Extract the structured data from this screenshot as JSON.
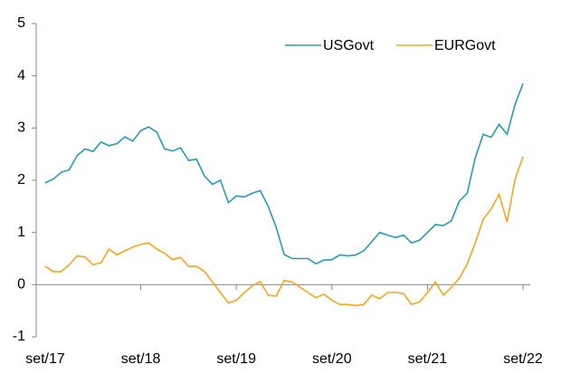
{
  "chart_data": {
    "type": "line",
    "categories": [
      "set/17",
      null,
      null,
      null,
      null,
      null,
      null,
      null,
      null,
      null,
      null,
      null,
      "set/18",
      null,
      null,
      null,
      null,
      null,
      null,
      null,
      null,
      null,
      null,
      null,
      "set/19",
      null,
      null,
      null,
      null,
      null,
      null,
      null,
      null,
      null,
      null,
      null,
      "set/20",
      null,
      null,
      null,
      null,
      null,
      null,
      null,
      null,
      null,
      null,
      null,
      "set/21",
      null,
      null,
      null,
      null,
      null,
      null,
      null,
      null,
      null,
      null,
      null,
      "set/22"
    ],
    "series": [
      {
        "name": "USGovt",
        "color": "#2a9bab",
        "values": [
          1.95,
          2.02,
          2.15,
          2.2,
          2.47,
          2.6,
          2.55,
          2.73,
          2.66,
          2.7,
          2.83,
          2.75,
          2.95,
          3.02,
          2.92,
          2.6,
          2.56,
          2.62,
          2.38,
          2.4,
          2.08,
          1.92,
          2.0,
          1.57,
          1.7,
          1.68,
          1.75,
          1.8,
          1.5,
          1.1,
          0.58,
          0.5,
          0.5,
          0.5,
          0.4,
          0.47,
          0.48,
          0.57,
          0.55,
          0.57,
          0.65,
          0.82,
          1.0,
          0.95,
          0.9,
          0.95,
          0.8,
          0.85,
          1.0,
          1.15,
          1.13,
          1.22,
          1.6,
          1.75,
          2.43,
          2.88,
          2.82,
          3.07,
          2.88,
          3.45,
          3.85
        ]
      },
      {
        "name": "EURGovt",
        "color": "#f5a623",
        "values": [
          0.35,
          0.25,
          0.25,
          0.38,
          0.55,
          0.53,
          0.38,
          0.42,
          0.68,
          0.57,
          0.65,
          0.72,
          0.77,
          0.8,
          0.68,
          0.6,
          0.48,
          0.52,
          0.35,
          0.35,
          0.25,
          0.05,
          -0.15,
          -0.35,
          -0.3,
          -0.15,
          -0.02,
          0.06,
          -0.2,
          -0.22,
          0.08,
          0.05,
          -0.05,
          -0.15,
          -0.25,
          -0.18,
          -0.3,
          -0.38,
          -0.38,
          -0.4,
          -0.38,
          -0.2,
          -0.27,
          -0.15,
          -0.15,
          -0.17,
          -0.38,
          -0.33,
          -0.15,
          0.05,
          -0.2,
          -0.05,
          0.12,
          0.4,
          0.8,
          1.25,
          1.45,
          1.73,
          1.2,
          2.02,
          2.45
        ]
      }
    ],
    "ylim": [
      -1,
      5
    ],
    "yticks": [
      -1,
      0,
      1,
      2,
      3,
      4,
      5
    ],
    "grid": false,
    "legend": "top"
  }
}
